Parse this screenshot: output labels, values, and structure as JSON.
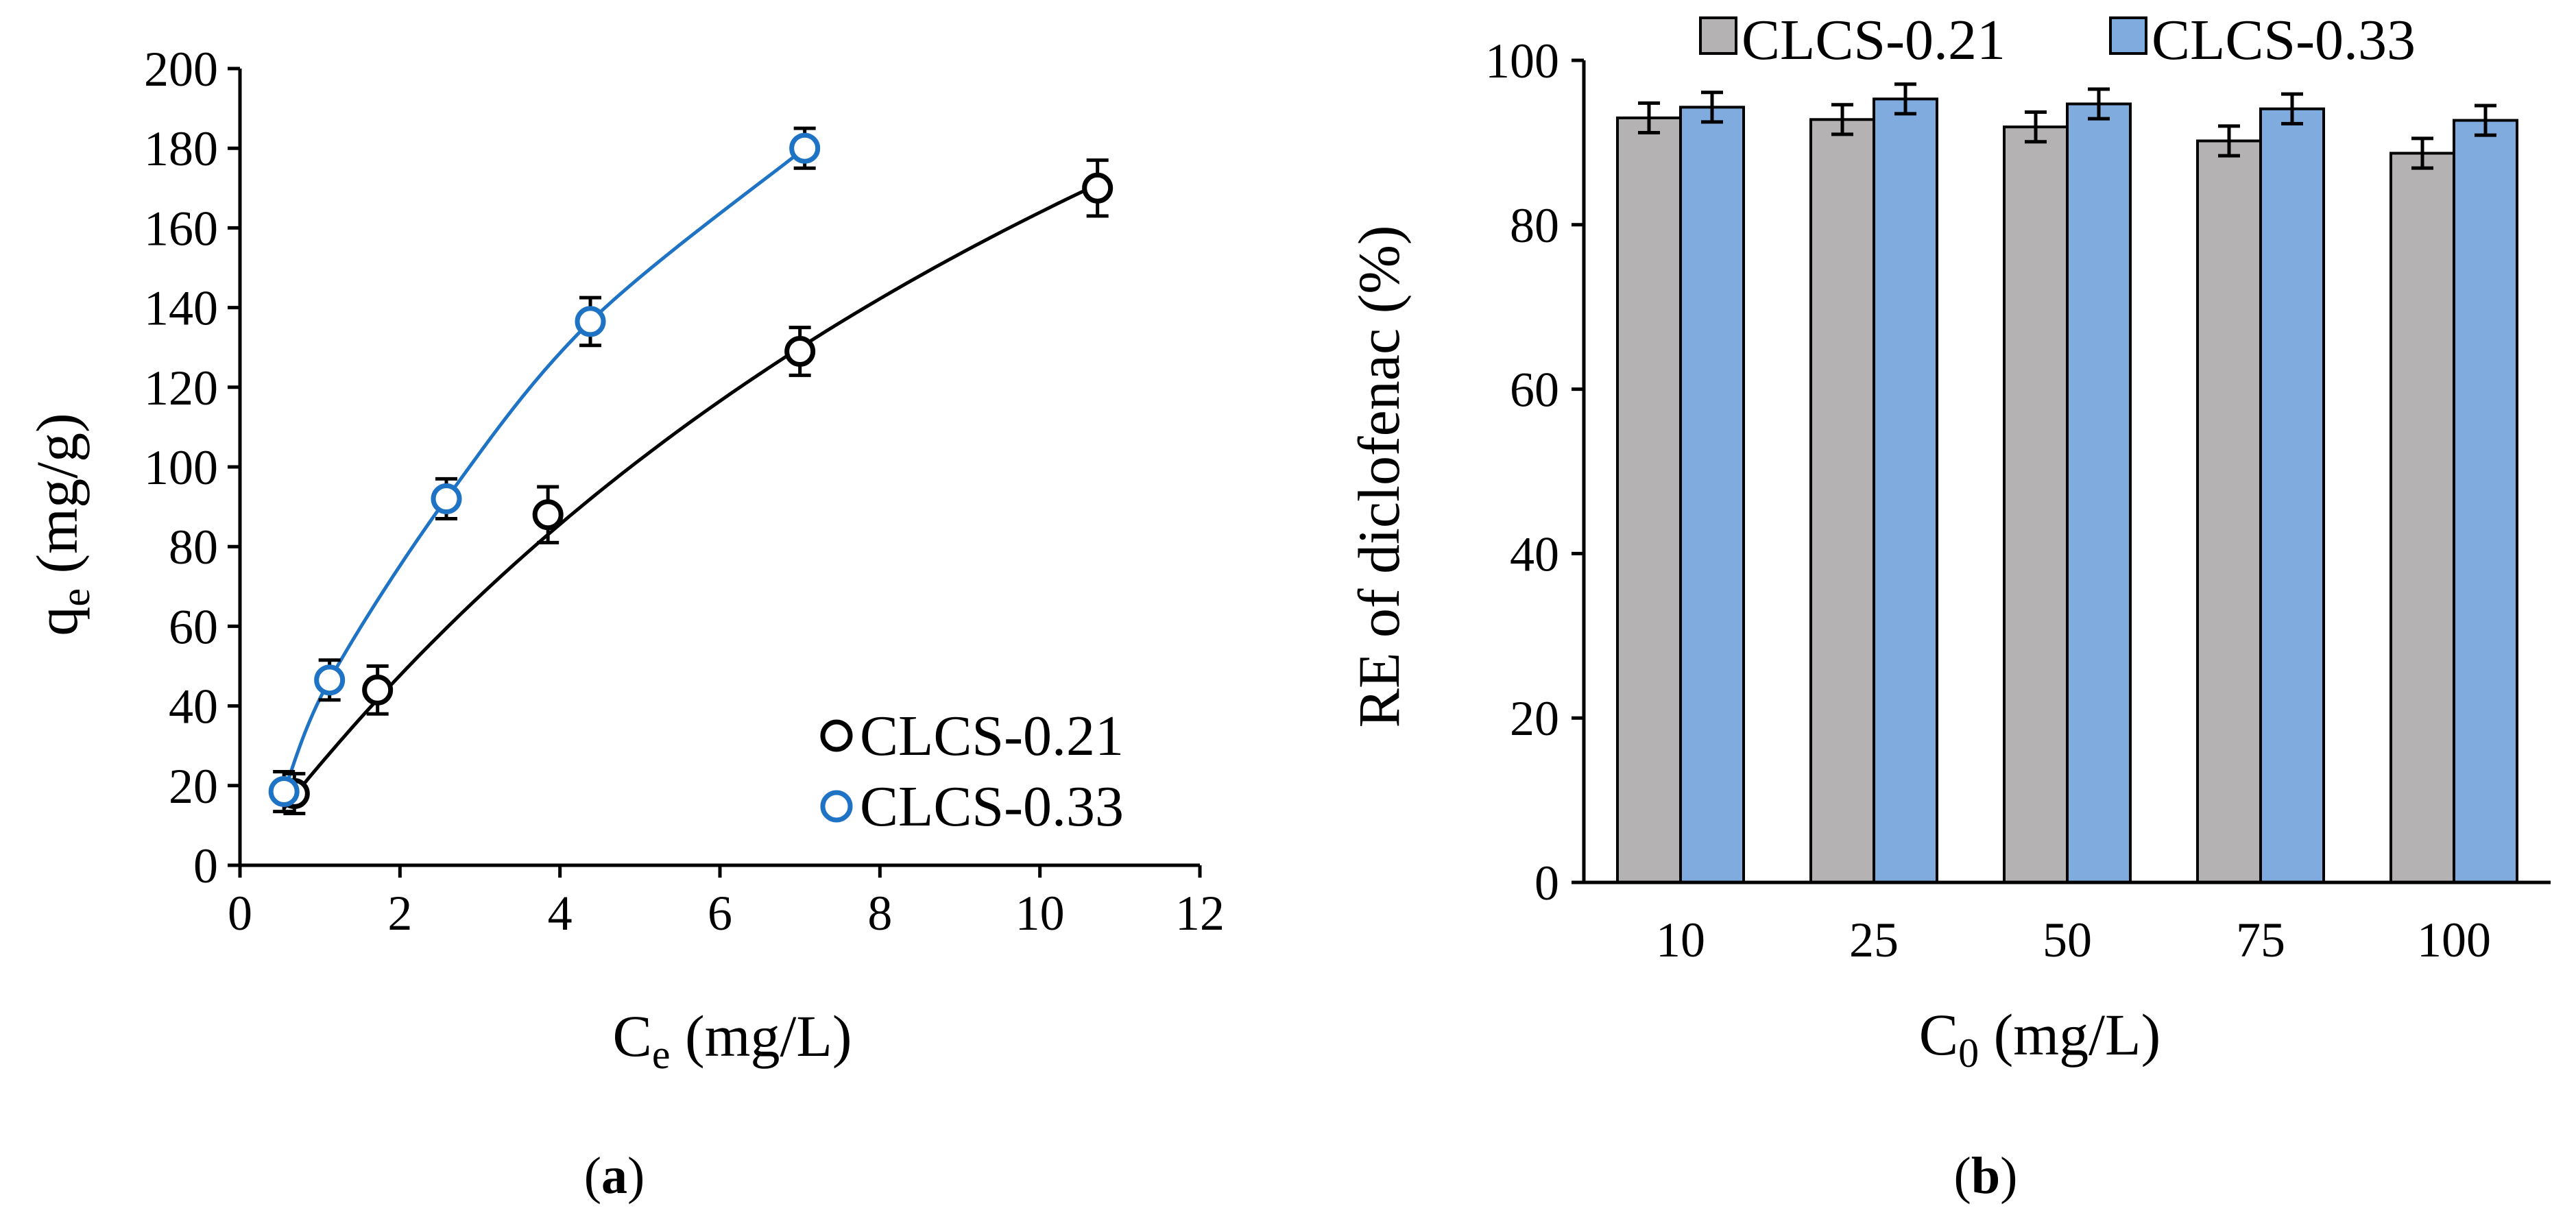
{
  "chart_data": [
    {
      "panel_label": "a",
      "type": "scatter",
      "title": "",
      "xlabel": {
        "main": "C",
        "sub": "e",
        "unit": " (mg/L)"
      },
      "ylabel": {
        "main": "q",
        "sub": "e",
        "unit": " (mg/g)"
      },
      "xlim": [
        0,
        12
      ],
      "ylim": [
        0,
        200
      ],
      "xticks": [
        "0",
        "2",
        "4",
        "6",
        "8",
        "10",
        "12"
      ],
      "yticks": [
        "0",
        "20",
        "40",
        "60",
        "80",
        "100",
        "120",
        "140",
        "160",
        "180",
        "200"
      ],
      "grid": false,
      "legend_position": "bottom-right",
      "series": [
        {
          "name": "CLCS-0.21",
          "color": "#000000",
          "marker": "open-circle",
          "x": [
            0.68,
            1.72,
            3.85,
            7.0,
            10.72
          ],
          "y": [
            18,
            44,
            88,
            129,
            170
          ],
          "yerr": [
            5,
            6,
            7,
            6,
            7
          ],
          "fit_curve": {
            "type": "langmuir",
            "qm": 420,
            "kl": 0.064,
            "x_range": [
              0.55,
              10.72
            ]
          }
        },
        {
          "name": "CLCS-0.33",
          "color": "#1f73c4",
          "marker": "open-circle",
          "x": [
            0.55,
            1.12,
            2.58,
            4.38,
            7.06
          ],
          "y": [
            18.5,
            46.5,
            92,
            136.5,
            180
          ],
          "yerr": [
            5,
            5,
            5,
            6,
            5
          ],
          "fit_curve": {
            "type": "smooth-through-points"
          }
        }
      ]
    },
    {
      "panel_label": "b",
      "type": "bar",
      "title": "",
      "xlabel": {
        "main": "C",
        "sub": "0",
        "unit": " (mg/L)"
      },
      "ylabel": "RE of  diclofenac (%)",
      "categories": [
        "10",
        "25",
        "50",
        "75",
        "100"
      ],
      "ylim": [
        0,
        100
      ],
      "yticks": [
        "0",
        "20",
        "40",
        "60",
        "80",
        "100"
      ],
      "grid": false,
      "legend_position": "top",
      "series": [
        {
          "name": "CLCS-0.21",
          "color": "#b4b2b3",
          "values": [
            93.0,
            92.8,
            91.9,
            90.2,
            88.7
          ],
          "yerr": [
            1.8,
            1.8,
            1.8,
            1.8,
            1.8
          ]
        },
        {
          "name": "CLCS-0.33",
          "color": "#7fabdf",
          "values": [
            94.3,
            95.3,
            94.7,
            94.1,
            92.7
          ],
          "yerr": [
            1.8,
            1.8,
            1.8,
            1.8,
            1.8
          ]
        }
      ]
    }
  ]
}
